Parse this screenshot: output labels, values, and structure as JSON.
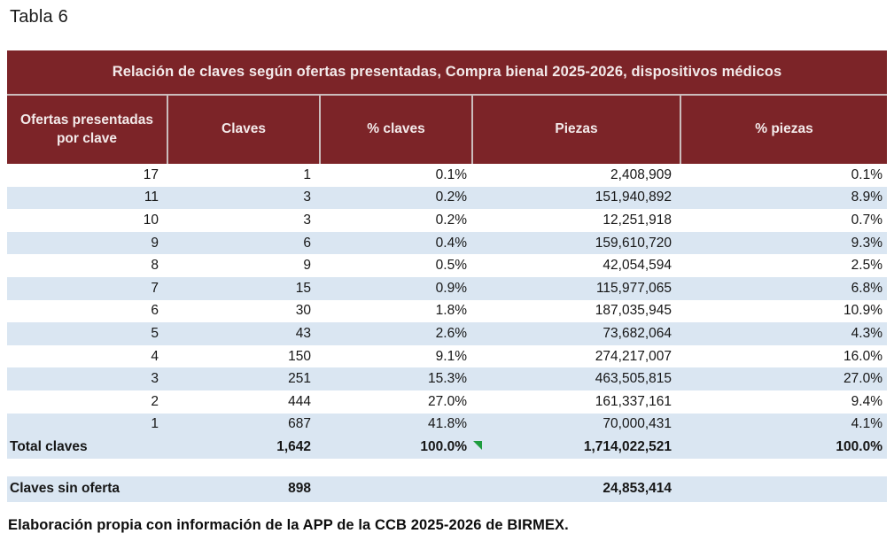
{
  "page_title": "Tabla 6",
  "colors": {
    "header_bg": "#7C2428",
    "stripe_blue": "#DAE6F2",
    "separator": "#CBBCBC",
    "marker_green": "#1E9C3E"
  },
  "table": {
    "title": "Relación de claves según ofertas presentadas, Compra bienal 2025-2026, dispositivos médicos",
    "columns": [
      "Ofertas presentadas por clave",
      "Claves",
      "% claves",
      "Piezas",
      "% piezas"
    ],
    "rows": [
      [
        "17",
        "1",
        "0.1%",
        "2,408,909",
        "0.1%"
      ],
      [
        "11",
        "3",
        "0.2%",
        "151,940,892",
        "8.9%"
      ],
      [
        "10",
        "3",
        "0.2%",
        "12,251,918",
        "0.7%"
      ],
      [
        "9",
        "6",
        "0.4%",
        "159,610,720",
        "9.3%"
      ],
      [
        "8",
        "9",
        "0.5%",
        "42,054,594",
        "2.5%"
      ],
      [
        "7",
        "15",
        "0.9%",
        "115,977,065",
        "6.8%"
      ],
      [
        "6",
        "30",
        "1.8%",
        "187,035,945",
        "10.9%"
      ],
      [
        "5",
        "43",
        "2.6%",
        "73,682,064",
        "4.3%"
      ],
      [
        "4",
        "150",
        "9.1%",
        "274,217,007",
        "16.0%"
      ],
      [
        "3",
        "251",
        "15.3%",
        "463,505,815",
        "27.0%"
      ],
      [
        "2",
        "444",
        "27.0%",
        "161,337,161",
        "9.4%"
      ],
      [
        "1",
        "687",
        "41.8%",
        "70,000,431",
        "4.1%"
      ]
    ],
    "total_row": [
      "Total claves",
      "1,642",
      "100.0%",
      "1,714,022,521",
      "100.0%"
    ],
    "no_offer_row": [
      "Claves sin oferta",
      "898",
      "",
      "24,853,414",
      ""
    ]
  },
  "footer": "Elaboración propia con información de la APP de la CCB 2025-2026 de BIRMEX."
}
